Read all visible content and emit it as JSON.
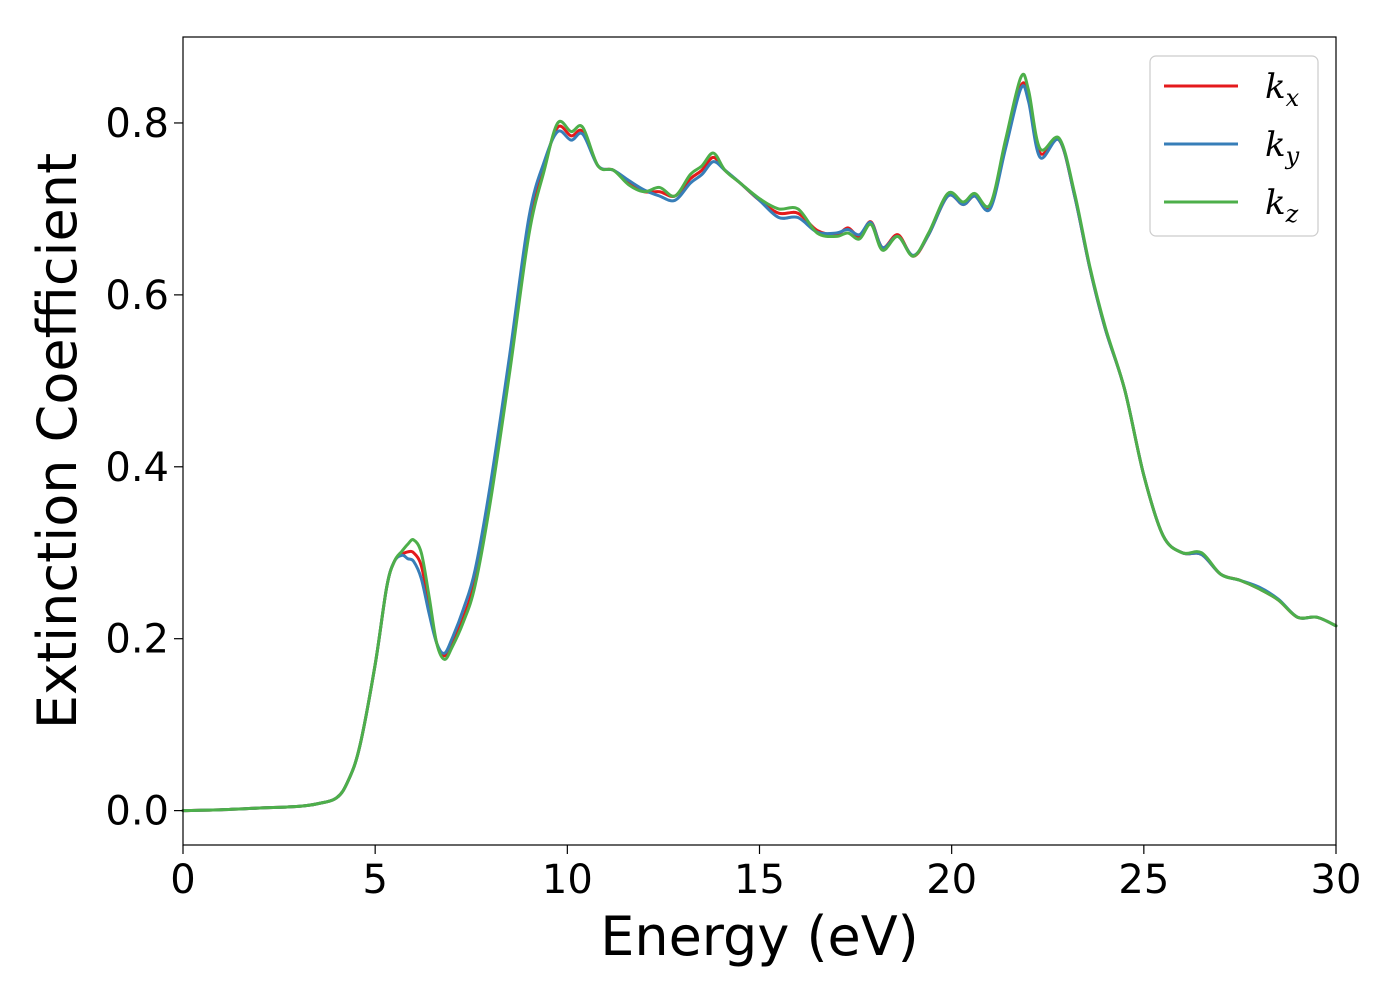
{
  "chart_data": {
    "type": "line",
    "xlabel": "Energy (eV)",
    "ylabel": "Extinction Coefficient",
    "xlim": [
      0,
      30
    ],
    "ylim": [
      -0.04,
      0.9
    ],
    "xticks": [
      "0",
      "5",
      "10",
      "15",
      "20",
      "25",
      "30"
    ],
    "yticks": [
      "0.0",
      "0.2",
      "0.4",
      "0.6",
      "0.8"
    ],
    "grid": false,
    "legend": "top-right",
    "series": [
      {
        "name": "k",
        "subscript": "x",
        "color": "#e41a1c",
        "x": [
          0,
          1,
          2,
          3,
          3.5,
          4,
          4.3,
          4.6,
          5,
          5.3,
          5.5,
          5.7,
          5.85,
          6.0,
          6.2,
          6.4,
          6.6,
          6.8,
          7.0,
          7.3,
          7.6,
          8,
          8.5,
          9,
          9.4,
          9.75,
          10.1,
          10.4,
          10.8,
          11.2,
          11.6,
          12,
          12.4,
          12.8,
          13.2,
          13.5,
          13.8,
          14.1,
          14.5,
          15,
          15.5,
          16,
          16.5,
          17,
          17.3,
          17.6,
          17.9,
          18.2,
          18.6,
          19.0,
          19.4,
          19.9,
          20.3,
          20.6,
          21.0,
          21.4,
          21.8,
          22.0,
          22.3,
          22.8,
          23.2,
          23.6,
          24,
          24.5,
          25,
          25.5,
          26,
          26.5,
          27,
          27.5,
          28,
          28.5,
          29,
          29.5,
          30
        ],
        "values": [
          0,
          0.001,
          0.003,
          0.005,
          0.008,
          0.015,
          0.035,
          0.075,
          0.17,
          0.26,
          0.29,
          0.298,
          0.301,
          0.3,
          0.285,
          0.24,
          0.195,
          0.18,
          0.195,
          0.225,
          0.27,
          0.37,
          0.52,
          0.68,
          0.75,
          0.795,
          0.785,
          0.79,
          0.75,
          0.745,
          0.73,
          0.72,
          0.72,
          0.715,
          0.735,
          0.745,
          0.76,
          0.745,
          0.73,
          0.71,
          0.695,
          0.695,
          0.675,
          0.67,
          0.678,
          0.668,
          0.685,
          0.655,
          0.67,
          0.645,
          0.67,
          0.715,
          0.705,
          0.715,
          0.702,
          0.775,
          0.843,
          0.83,
          0.765,
          0.78,
          0.715,
          0.63,
          0.56,
          0.49,
          0.39,
          0.32,
          0.3,
          0.298,
          0.275,
          0.268,
          0.258,
          0.245,
          0.225,
          0.225,
          0.215
        ]
      },
      {
        "name": "k",
        "subscript": "y",
        "color": "#377eb8",
        "x": [
          0,
          1,
          2,
          3,
          3.5,
          4,
          4.3,
          4.6,
          5,
          5.3,
          5.5,
          5.7,
          5.85,
          6.0,
          6.2,
          6.4,
          6.6,
          6.8,
          7.0,
          7.3,
          7.6,
          8,
          8.5,
          9,
          9.4,
          9.75,
          10.1,
          10.4,
          10.8,
          11.2,
          11.6,
          12,
          12.4,
          12.8,
          13.2,
          13.5,
          13.8,
          14.1,
          14.5,
          15,
          15.5,
          16,
          16.5,
          17,
          17.3,
          17.6,
          17.9,
          18.2,
          18.6,
          19.0,
          19.4,
          19.9,
          20.3,
          20.6,
          21.0,
          21.4,
          21.8,
          22.0,
          22.3,
          22.8,
          23.2,
          23.6,
          24,
          24.5,
          25,
          25.5,
          26,
          26.5,
          27,
          27.5,
          28,
          28.5,
          29,
          29.5,
          30
        ],
        "values": [
          0,
          0.001,
          0.003,
          0.005,
          0.008,
          0.015,
          0.035,
          0.075,
          0.17,
          0.26,
          0.29,
          0.297,
          0.293,
          0.29,
          0.27,
          0.23,
          0.195,
          0.183,
          0.2,
          0.235,
          0.28,
          0.38,
          0.53,
          0.69,
          0.755,
          0.79,
          0.78,
          0.787,
          0.75,
          0.745,
          0.733,
          0.722,
          0.715,
          0.71,
          0.73,
          0.74,
          0.755,
          0.745,
          0.73,
          0.71,
          0.69,
          0.69,
          0.673,
          0.672,
          0.676,
          0.67,
          0.684,
          0.655,
          0.668,
          0.646,
          0.67,
          0.715,
          0.705,
          0.715,
          0.7,
          0.77,
          0.84,
          0.825,
          0.76,
          0.78,
          0.715,
          0.63,
          0.56,
          0.49,
          0.39,
          0.32,
          0.3,
          0.298,
          0.275,
          0.268,
          0.26,
          0.246,
          0.225,
          0.225,
          0.215
        ]
      },
      {
        "name": "k",
        "subscript": "z",
        "color": "#4daf4a",
        "x": [
          0,
          1,
          2,
          3,
          3.5,
          4,
          4.3,
          4.6,
          5,
          5.3,
          5.5,
          5.7,
          5.85,
          6.0,
          6.2,
          6.4,
          6.6,
          6.8,
          7.0,
          7.3,
          7.6,
          8,
          8.5,
          9,
          9.4,
          9.75,
          10.1,
          10.4,
          10.8,
          11.2,
          11.6,
          12,
          12.4,
          12.8,
          13.2,
          13.5,
          13.8,
          14.1,
          14.5,
          15,
          15.5,
          16,
          16.5,
          17,
          17.3,
          17.6,
          17.9,
          18.2,
          18.6,
          19.0,
          19.4,
          19.9,
          20.3,
          20.6,
          21.0,
          21.4,
          21.8,
          22.0,
          22.3,
          22.8,
          23.2,
          23.6,
          24,
          24.5,
          25,
          25.5,
          26,
          26.5,
          27,
          27.5,
          28,
          28.5,
          29,
          29.5,
          30
        ],
        "values": [
          0,
          0.001,
          0.003,
          0.005,
          0.008,
          0.015,
          0.035,
          0.075,
          0.17,
          0.26,
          0.29,
          0.302,
          0.31,
          0.315,
          0.3,
          0.25,
          0.195,
          0.176,
          0.19,
          0.22,
          0.262,
          0.36,
          0.51,
          0.67,
          0.745,
          0.8,
          0.79,
          0.795,
          0.75,
          0.745,
          0.728,
          0.72,
          0.725,
          0.715,
          0.74,
          0.75,
          0.765,
          0.745,
          0.73,
          0.712,
          0.7,
          0.7,
          0.672,
          0.668,
          0.672,
          0.665,
          0.682,
          0.652,
          0.668,
          0.645,
          0.672,
          0.718,
          0.708,
          0.718,
          0.705,
          0.78,
          0.853,
          0.838,
          0.77,
          0.782,
          0.718,
          0.632,
          0.562,
          0.49,
          0.39,
          0.32,
          0.3,
          0.3,
          0.275,
          0.268,
          0.258,
          0.245,
          0.225,
          0.225,
          0.215
        ]
      }
    ]
  }
}
